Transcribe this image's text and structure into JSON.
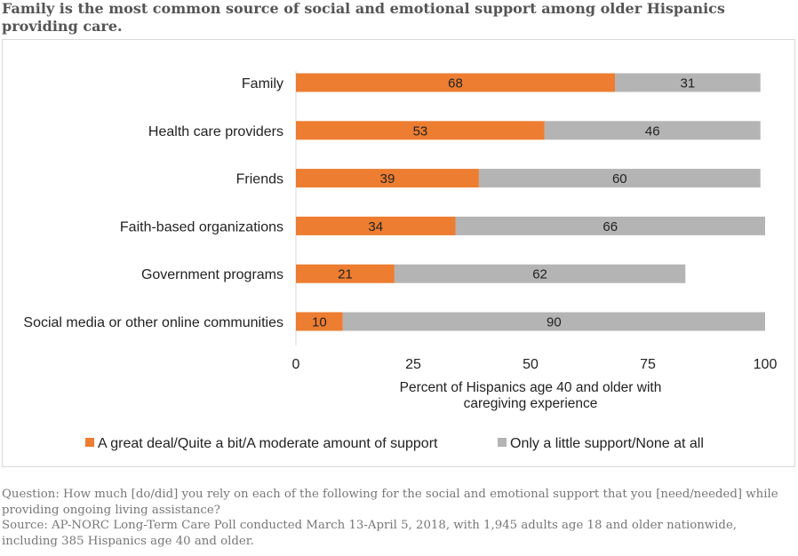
{
  "title": "Family is the most common source of social and emotional support among older Hispanics providing care.",
  "chart_data": {
    "type": "bar",
    "orientation": "horizontal",
    "stacked": true,
    "categories": [
      "Family",
      "Health care providers",
      "Friends",
      "Faith-based organizations",
      "Government programs",
      "Social media or other online communities"
    ],
    "series": [
      {
        "name": "A great deal/Quite a bit/A moderate amount of support",
        "color": "#ed7d31",
        "values": [
          68,
          53,
          39,
          34,
          21,
          10
        ]
      },
      {
        "name": "Only a little support/None at all",
        "color": "#b4b4b4",
        "values": [
          31,
          46,
          60,
          66,
          62,
          90
        ]
      }
    ],
    "xlabel": "Percent of Hispanics age 40 and older with caregiving experience",
    "xlabel_lines": [
      "Percent of Hispanics age 40 and older with",
      "caregiving experience"
    ],
    "xlim": [
      0,
      100
    ],
    "xticks": [
      0,
      25,
      50,
      75,
      100
    ],
    "grid": false,
    "legend_position": "bottom"
  },
  "footnote": {
    "question": "Question: How much [do/did] you rely on each of the following for the social and emotional support that you [need/needed] while providing ongoing living assistance?",
    "source": "Source: AP-NORC Long-Term Care Poll conducted March 13-April 5, 2018, with 1,945 adults age 18 and older nationwide, including 385 Hispanics age 40 and older."
  }
}
